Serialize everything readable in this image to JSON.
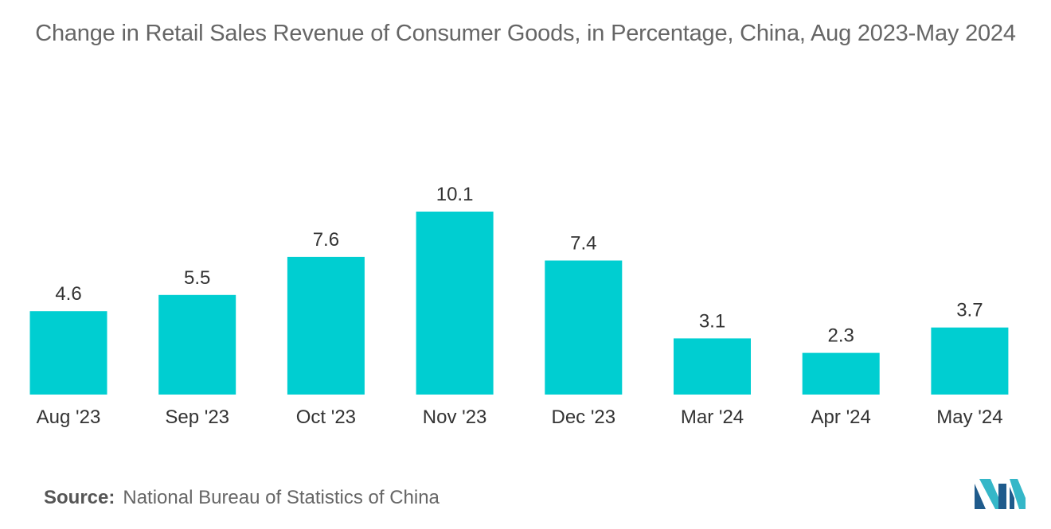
{
  "chart_data": {
    "type": "bar",
    "title": "Change in Retail Sales Revenue of Consumer Goods, in Percentage, China, Aug 2023-May 2024",
    "categories": [
      "Aug '23",
      "Sep '23",
      "Oct '23",
      "Nov '23",
      "Dec '23",
      "Mar '24",
      "Apr '24",
      "May '24"
    ],
    "values": [
      4.6,
      5.5,
      7.6,
      10.1,
      7.4,
      3.1,
      2.3,
      3.7
    ],
    "labels": [
      "4.6",
      "5.5",
      "7.6",
      "10.1",
      "7.4",
      "3.1",
      "2.3",
      "3.7"
    ],
    "xlabel": "",
    "ylabel": "",
    "ylim": [
      0,
      10.1
    ],
    "grid": false,
    "bar_color": "#00CED1"
  },
  "source": {
    "label": "Source:",
    "text": "National Bureau of Statistics of China"
  },
  "logo": {
    "icon": "mordor-intelligence-logo-icon",
    "colors": [
      "#1F5B8C",
      "#35B7C8"
    ]
  }
}
